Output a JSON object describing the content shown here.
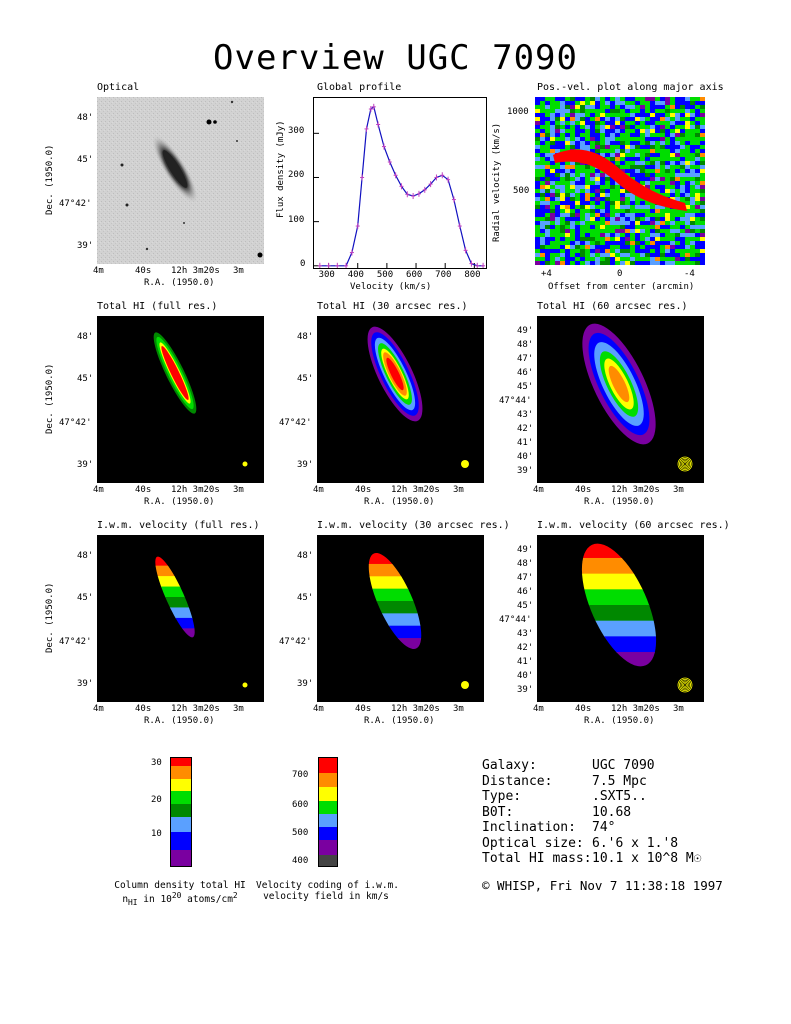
{
  "title": "Overview UGC 7090",
  "panels": {
    "optical": "Optical",
    "global_profile": "Global profile",
    "pv": "Pos.-vel. plot along major axis",
    "hi_full": "Total HI (full res.)",
    "hi_30": "Total HI (30 arcsec res.)",
    "hi_60": "Total HI (60 arcsec res.)",
    "vel_full": "I.w.m. velocity (full res.)",
    "vel_30": "I.w.m. velocity (30 arcsec res.)",
    "vel_60": "I.w.m. velocity (60 arcsec res.)"
  },
  "axes": {
    "ra_label": "R.A. (1950.0)",
    "dec_label": "Dec. (1950.0)",
    "ra_ticks": [
      "4m",
      "40s",
      "12h 3m20s",
      "3m"
    ],
    "dec_ticks_small": [
      "48'",
      "45'",
      "47°42'",
      "39'"
    ],
    "dec_ticks_large": [
      "49'",
      "48'",
      "47'",
      "46'",
      "45'",
      "47°44'",
      "43'",
      "42'",
      "41'",
      "40'",
      "39'"
    ],
    "profile_xlabel": "Velocity (km/s)",
    "profile_ylabel": "Flux density (mJy)",
    "profile_xticks": [
      "300",
      "400",
      "500",
      "600",
      "700",
      "800"
    ],
    "profile_yticks": [
      "0",
      "100",
      "200",
      "300"
    ],
    "pv_xlabel": "Offset from center (arcmin)",
    "pv_ylabel": "Radial velocity (km/s)",
    "pv_xticks": [
      "+4",
      "0",
      "-4"
    ],
    "pv_yticks": [
      "1000",
      "500"
    ]
  },
  "chart_data": {
    "type": "line",
    "title": "Global profile",
    "xlabel": "Velocity (km/s)",
    "ylabel": "Flux density (mJy)",
    "xlim": [
      250,
      840
    ],
    "ylim": [
      -5,
      380
    ],
    "x": [
      270,
      300,
      330,
      360,
      380,
      400,
      415,
      430,
      445,
      455,
      470,
      490,
      510,
      530,
      550,
      570,
      590,
      610,
      630,
      650,
      670,
      690,
      710,
      730,
      750,
      770,
      790,
      810,
      830
    ],
    "y": [
      0,
      0,
      0,
      0,
      30,
      90,
      200,
      310,
      355,
      360,
      320,
      270,
      235,
      205,
      180,
      162,
      158,
      163,
      172,
      185,
      200,
      205,
      195,
      150,
      90,
      35,
      5,
      0,
      0
    ]
  },
  "colorbars": {
    "column_density": {
      "ticks": [
        "30",
        "20",
        "10"
      ],
      "caption_line1": "Column density total HI",
      "caption_line2": "n_HI in 10^20 atoms/cm^2"
    },
    "velocity": {
      "ticks": [
        "700",
        "600",
        "500",
        "400"
      ],
      "caption_line1": "Velocity coding of i.w.m.",
      "caption_line2": "velocity field in km/s"
    }
  },
  "galaxy_info": [
    {
      "label": "Galaxy:",
      "value": "UGC 7090"
    },
    {
      "label": "Distance:",
      "value": "7.5 Mpc"
    },
    {
      "label": "Type:",
      "value": ".SXT5.."
    },
    {
      "label": "B0T:",
      "value": "10.68"
    },
    {
      "label": "Inclination:",
      "value": "74°"
    },
    {
      "label": "Optical size:",
      "value": "6.'6 x 1.'8"
    },
    {
      "label": "Total HI mass:",
      "value": "10.1 x 10^8 M☉"
    }
  ],
  "footer": "© WHISP, Fri Nov  7 11:38:18 1997",
  "colors": {
    "red": "#ff0000",
    "orange": "#ff8c00",
    "yellow": "#ffff00",
    "green": "#00dd00",
    "darkgreen": "#008800",
    "lightblue": "#5aa0ff",
    "blue": "#0000ff",
    "purple": "#7a00a0",
    "gray": "#444444"
  }
}
